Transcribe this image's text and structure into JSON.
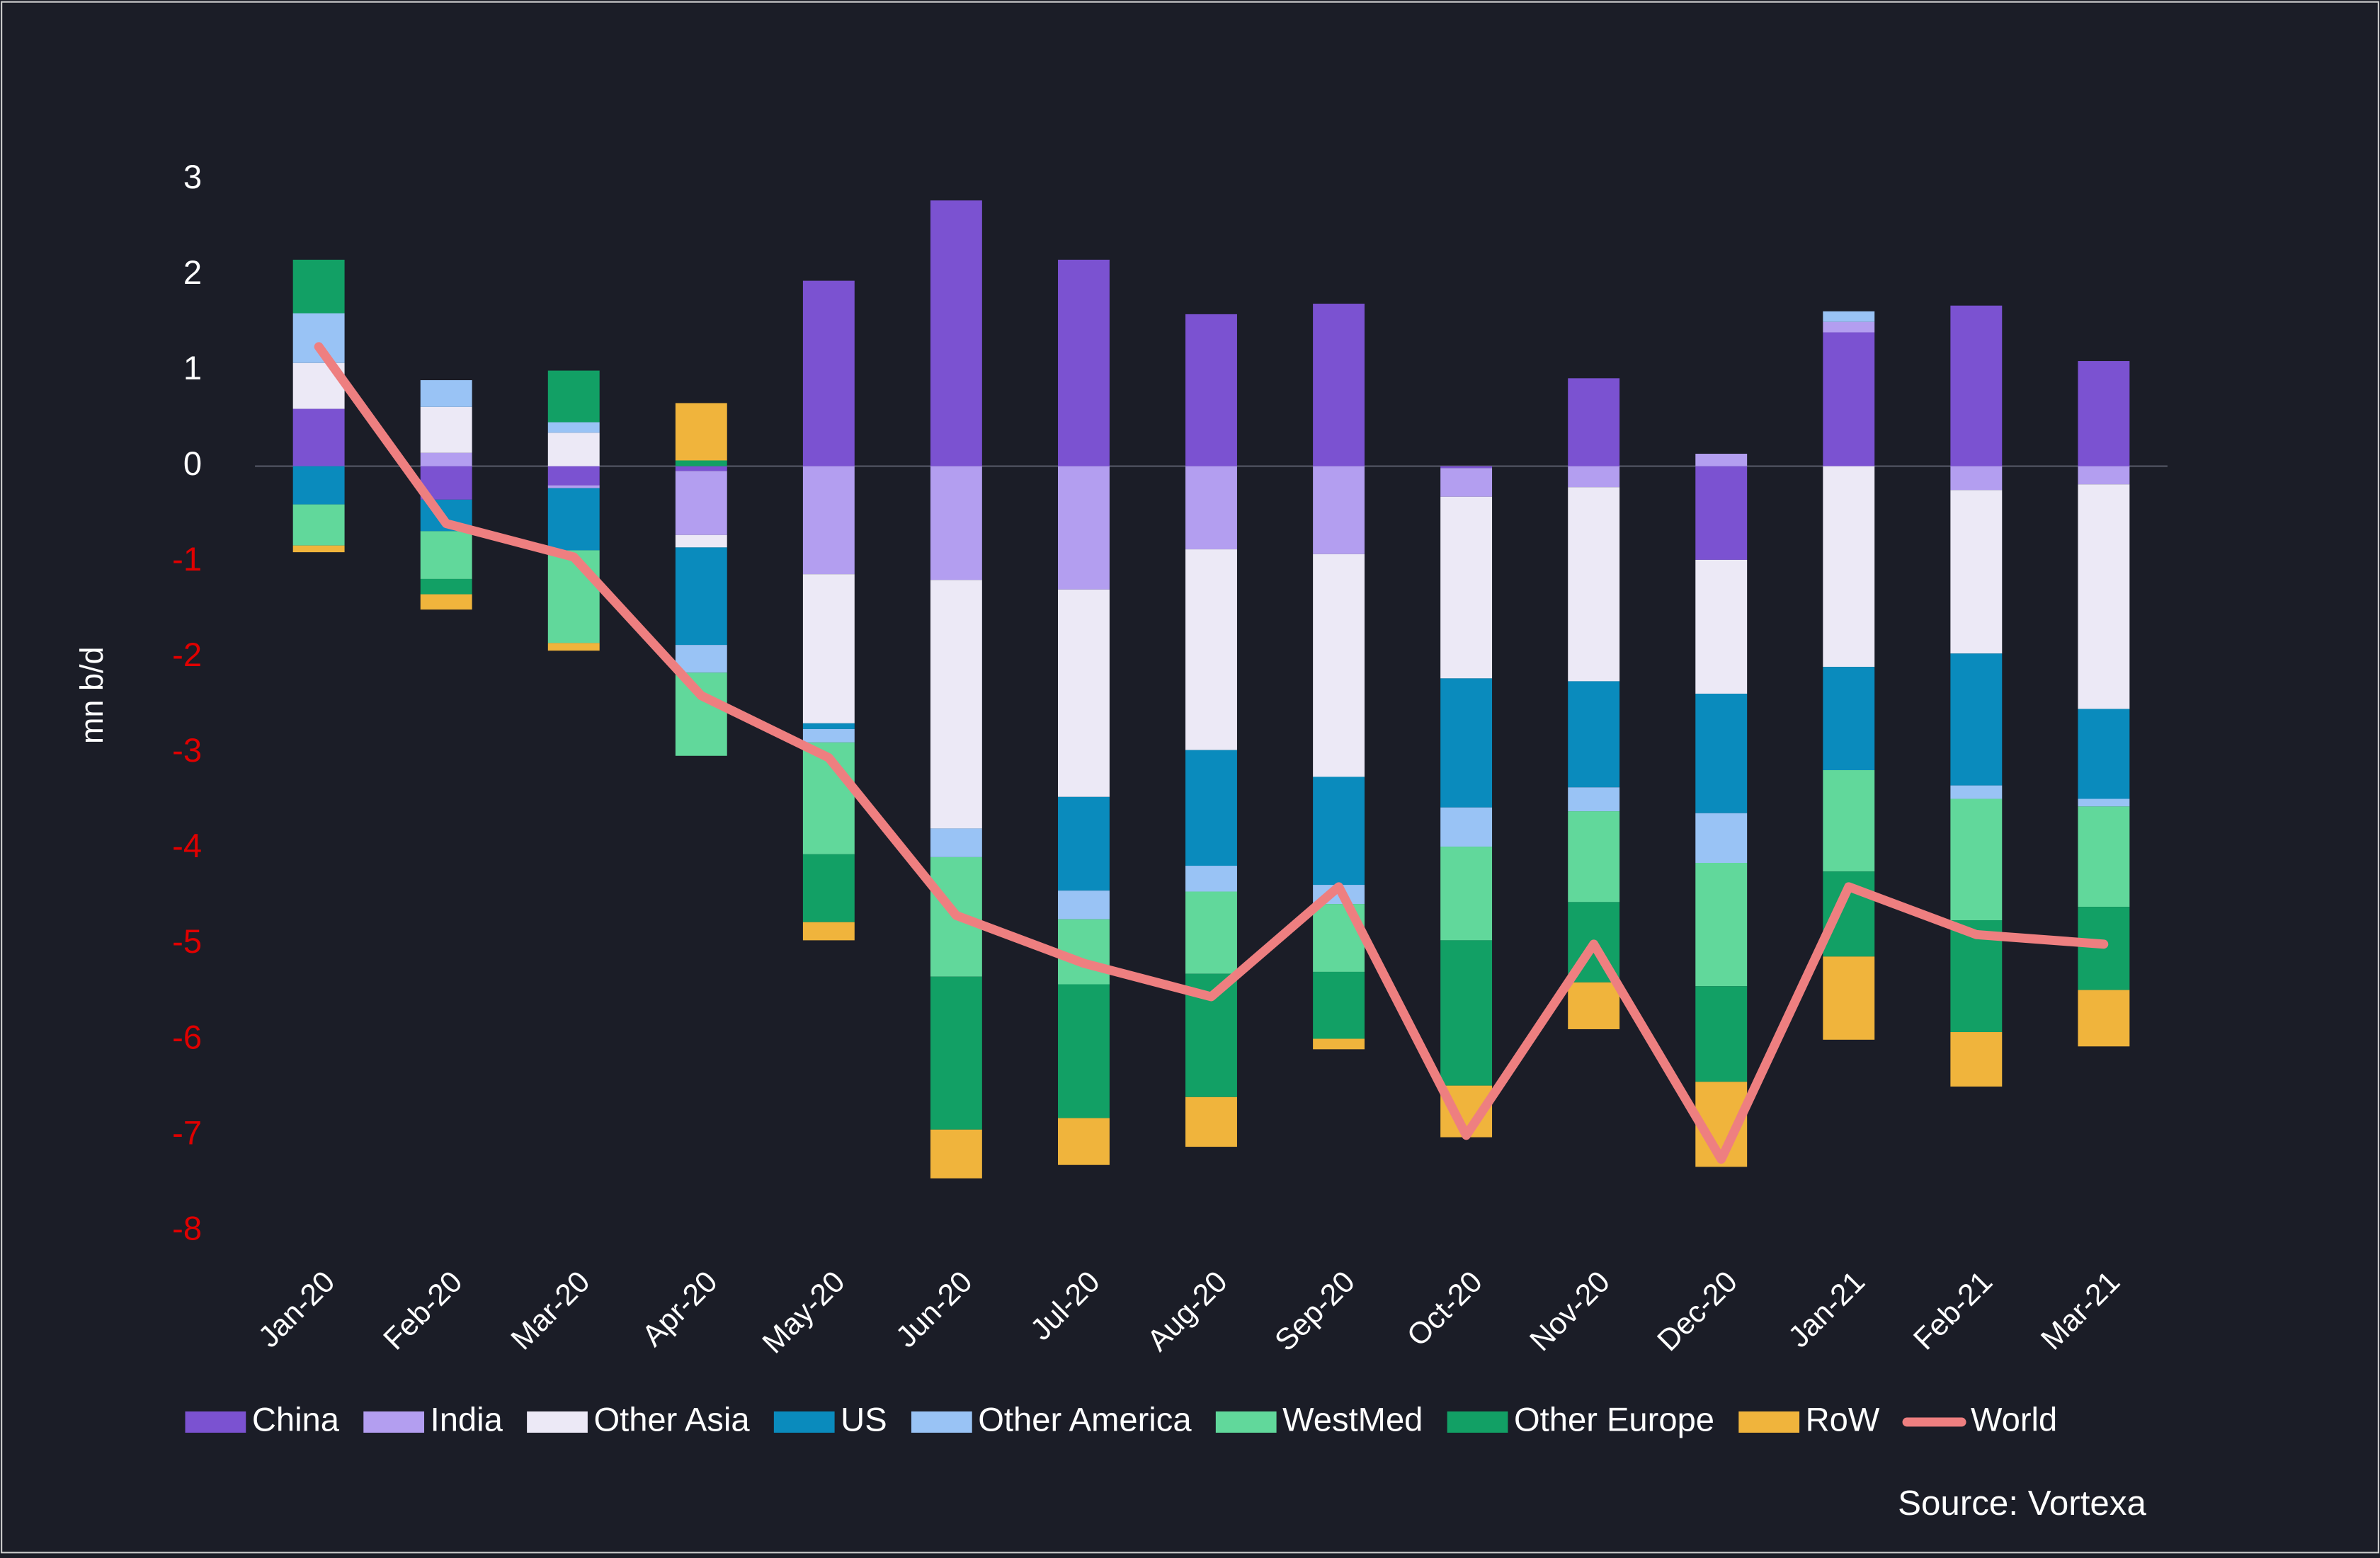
{
  "chart_data": {
    "type": "bar",
    "stacked": true,
    "y_label": "mn b/d",
    "source": "Source:  Vortexa",
    "categories": [
      "Jan-20",
      "Feb-20",
      "Mar-20",
      "Apr-20",
      "May-20",
      "Jun-20",
      "Jul-20",
      "Aug-20",
      "Sep-20",
      "Oct-20",
      "Nov-20",
      "Dec-20",
      "Jan-21",
      "Feb-21",
      "Mar-21"
    ],
    "ylim": [
      -8,
      3
    ],
    "yticks": [
      -8,
      -7,
      -6,
      -5,
      -4,
      -3,
      -2,
      -1,
      0,
      1,
      2,
      3
    ],
    "tick_color": "#ffffff",
    "negative_tick_color": "#e00000",
    "series": [
      {
        "name": "China",
        "color": "#7b52d1",
        "values": [
          0.6,
          -0.35,
          -0.2,
          -0.05,
          1.94,
          2.78,
          2.16,
          1.59,
          1.7,
          -0.02,
          0.92,
          -0.98,
          1.4,
          1.68,
          1.1
        ]
      },
      {
        "name": "India",
        "color": "#b39ef0",
        "values": [
          0,
          0.14,
          -0.03,
          -0.67,
          -1.13,
          -1.19,
          -1.29,
          -0.87,
          -0.92,
          -0.3,
          -0.22,
          0.13,
          0.11,
          -0.25,
          -0.19
        ]
      },
      {
        "name": "Other Asia",
        "color": "#ece9f6",
        "values": [
          0.48,
          0.48,
          0.35,
          -0.13,
          -1.56,
          -2.6,
          -2.17,
          -2.1,
          -2.33,
          -1.9,
          -2.03,
          -1.4,
          -2.1,
          -1.71,
          -2.35
        ]
      },
      {
        "name": "US",
        "color": "#0a8bbd",
        "values": [
          -0.4,
          -0.33,
          -0.65,
          -1.02,
          -0.06,
          0,
          -0.98,
          -1.21,
          -1.13,
          -1.35,
          -1.11,
          -1.25,
          -1.08,
          -1.38,
          -0.94
        ]
      },
      {
        "name": "Other America",
        "color": "#99c3f5",
        "values": [
          0.52,
          0.28,
          0.11,
          -0.29,
          -0.14,
          -0.3,
          -0.3,
          -0.27,
          -0.2,
          -0.41,
          -0.25,
          -0.52,
          0.11,
          -0.14,
          -0.08
        ]
      },
      {
        "name": "WestMed",
        "color": "#61d89b",
        "values": [
          -0.43,
          -0.5,
          -0.97,
          -0.87,
          -1.17,
          -1.25,
          -0.68,
          -0.86,
          -0.71,
          -0.98,
          -0.95,
          -1.29,
          -1.06,
          -1.27,
          -1.05
        ]
      },
      {
        "name": "Other Europe",
        "color": "#12a065",
        "values": [
          0.56,
          -0.16,
          0.54,
          0.06,
          -0.71,
          -1.6,
          -1.4,
          -1.29,
          -0.7,
          -1.52,
          -0.84,
          -1.0,
          -0.89,
          -1.17,
          -0.87
        ]
      },
      {
        "name": "RoW",
        "color": "#f0b43c",
        "values": [
          -0.07,
          -0.16,
          -0.08,
          0.6,
          -0.19,
          -0.51,
          -0.49,
          -0.52,
          -0.11,
          -0.54,
          -0.49,
          -0.89,
          -0.87,
          -0.57,
          -0.59
        ]
      },
      {
        "name": "World",
        "type": "line",
        "color": "#ee7f80",
        "values": [
          1.25,
          -0.6,
          -0.95,
          -2.4,
          -3.05,
          -4.7,
          -5.2,
          -5.55,
          -4.4,
          -7.0,
          -5.0,
          -7.25,
          -4.4,
          -4.9,
          -5.0
        ]
      }
    ]
  }
}
